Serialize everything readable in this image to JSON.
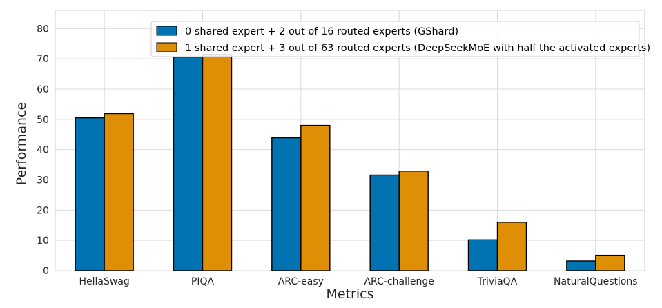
{
  "chart_data": {
    "type": "bar",
    "title": "",
    "xlabel": "Metrics",
    "ylabel": "Performance",
    "ylim": [
      0,
      86
    ],
    "yticks": [
      0,
      10,
      20,
      30,
      40,
      50,
      60,
      70,
      80
    ],
    "grid": true,
    "legend_position": "top-center",
    "categories": [
      "HellaSwag",
      "PIQA",
      "ARC-easy",
      "ARC-challenge",
      "TriviaQA",
      "NaturalQuestions"
    ],
    "series": [
      {
        "name": "0 shared expert + 2 out of 16 routed experts (GShard)",
        "color": "#0173b2",
        "values": [
          50.5,
          70.6,
          43.9,
          31.6,
          10.2,
          3.2
        ]
      },
      {
        "name": "1 shared expert + 3 out of 63 routed experts (DeepSeekMoE with half the activated experts)",
        "color": "#de8f05",
        "values": [
          51.9,
          71.4,
          48.0,
          32.9,
          16.0,
          5.1
        ]
      }
    ]
  }
}
